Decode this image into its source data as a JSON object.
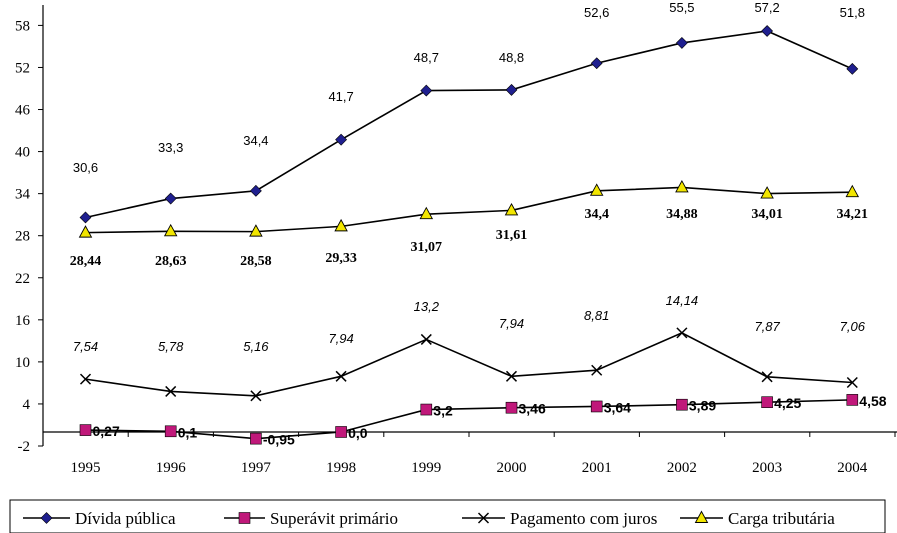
{
  "chart_data": {
    "type": "line",
    "categories": [
      "1995",
      "1996",
      "1997",
      "1998",
      "1999",
      "2000",
      "2001",
      "2002",
      "2003",
      "2004"
    ],
    "y_ticks": [
      "-2",
      "4",
      "10",
      "16",
      "22",
      "28",
      "34",
      "40",
      "46",
      "52",
      "58"
    ],
    "ylim": [
      -2,
      58
    ],
    "grid": false,
    "legend_position": "bottom",
    "series": [
      {
        "name": "Dívida pública",
        "values": [
          30.6,
          33.3,
          34.4,
          41.7,
          48.7,
          48.8,
          52.6,
          55.5,
          57.2,
          51.8
        ],
        "labels": [
          "30,6",
          "33,3",
          "34,4",
          "41,7",
          "48,7",
          "48,8",
          "52,6",
          "55,5",
          "57,2",
          "51,8"
        ],
        "color": "#1f1f8f",
        "marker": "diamond"
      },
      {
        "name": "Superávit primário",
        "values": [
          0.27,
          0.1,
          -0.95,
          0.0,
          3.2,
          3.46,
          3.64,
          3.89,
          4.25,
          4.58
        ],
        "labels": [
          "0,27",
          "0,1",
          "-0,95",
          "0,0",
          "3,2",
          "3,46",
          "3,64",
          "3,89",
          "4,25",
          "4,58"
        ],
        "color": "#c0187a",
        "marker": "square"
      },
      {
        "name": "Pagamento com juros",
        "values": [
          7.54,
          5.78,
          5.16,
          7.94,
          13.2,
          7.94,
          8.81,
          14.14,
          7.87,
          7.06
        ],
        "labels": [
          "7,54",
          "5,78",
          "5,16",
          "7,94",
          "13,2",
          "7,94",
          "8,81",
          "14,14",
          "7,87",
          "7,06"
        ],
        "color": "#000000",
        "marker": "x"
      },
      {
        "name": "Carga tributária",
        "values": [
          28.44,
          28.63,
          28.58,
          29.33,
          31.07,
          31.61,
          34.4,
          34.88,
          34.01,
          34.21
        ],
        "labels": [
          "28,44",
          "28,63",
          "28,58",
          "29,33",
          "31,07",
          "31,61",
          "34,4",
          "34,88",
          "34,01",
          "34,21"
        ],
        "color": "#f2e600",
        "marker": "triangle"
      }
    ]
  }
}
